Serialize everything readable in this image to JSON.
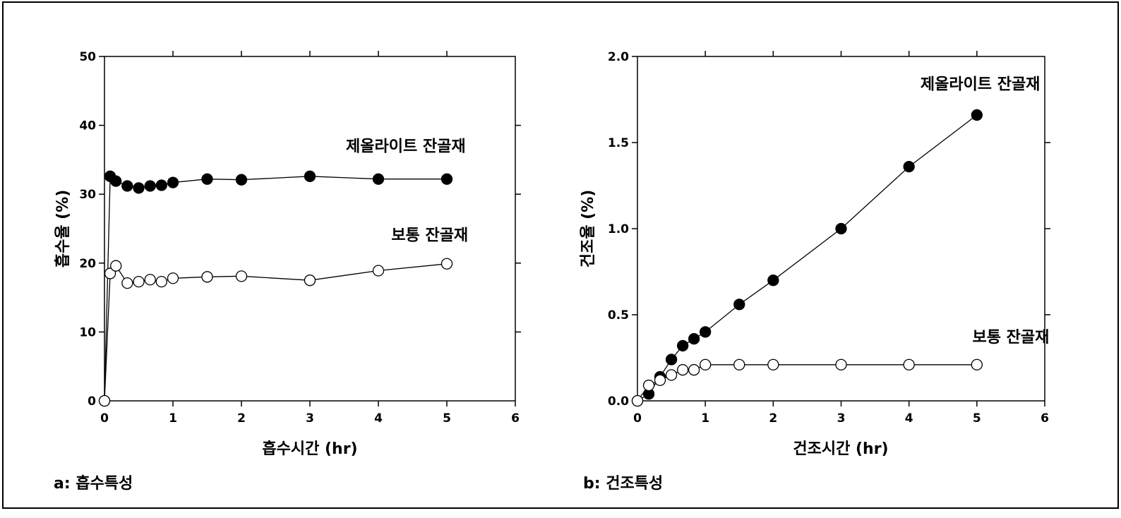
{
  "chart_data": [
    {
      "type": "line",
      "caption": "a: 흡수특성",
      "xlabel": "흡수시간 (hr)",
      "ylabel": "흡수율 (%)",
      "xlim": [
        0,
        6
      ],
      "ylim": [
        0,
        50
      ],
      "xticks": [
        0,
        1,
        2,
        3,
        4,
        5,
        6
      ],
      "yticks": [
        0,
        10,
        20,
        30,
        40,
        50
      ],
      "grid": false,
      "series": [
        {
          "name": "제올라이트 잔골재",
          "marker": "filled-circle",
          "label_at": [
            4.4,
            36.2
          ],
          "x": [
            0,
            0.083,
            0.167,
            0.333,
            0.5,
            0.667,
            0.833,
            1,
            1.5,
            2,
            3,
            4,
            5
          ],
          "y": [
            0,
            32.6,
            31.9,
            31.2,
            30.9,
            31.2,
            31.3,
            31.7,
            32.2,
            32.1,
            32.6,
            32.2,
            32.2
          ]
        },
        {
          "name": "보통 잔골재",
          "marker": "open-circle",
          "label_at": [
            4.75,
            23.3
          ],
          "x": [
            0,
            0.083,
            0.167,
            0.333,
            0.5,
            0.667,
            0.833,
            1,
            1.5,
            2,
            3,
            4,
            5
          ],
          "y": [
            0,
            18.5,
            19.6,
            17.1,
            17.3,
            17.6,
            17.3,
            17.8,
            18.0,
            18.1,
            17.5,
            18.9,
            19.9
          ]
        }
      ]
    },
    {
      "type": "line",
      "caption": "b: 건조특성",
      "xlabel": "건조시간 (hr)",
      "ylabel": "건조율 (%)",
      "xlim": [
        0,
        6
      ],
      "ylim": [
        0,
        2.0
      ],
      "xticks": [
        0,
        1,
        2,
        3,
        4,
        5,
        6
      ],
      "yticks": [
        0,
        0.5,
        1.0,
        1.5,
        2.0
      ],
      "ytick_labels": [
        "0.0",
        "0.5",
        "1.0",
        "1.5",
        "2.0"
      ],
      "grid": false,
      "series": [
        {
          "name": "제올라이트 잔골재",
          "marker": "filled-circle",
          "label_at": [
            5.05,
            1.81
          ],
          "x": [
            0,
            0.167,
            0.333,
            0.5,
            0.667,
            0.833,
            1,
            1.5,
            2,
            3,
            4,
            5
          ],
          "y": [
            0,
            0.04,
            0.14,
            0.24,
            0.32,
            0.36,
            0.4,
            0.56,
            0.7,
            1.0,
            1.36,
            1.66
          ]
        },
        {
          "name": "보통 잔골재",
          "marker": "open-circle",
          "label_at": [
            5.5,
            0.34
          ],
          "x": [
            0,
            0.167,
            0.333,
            0.5,
            0.667,
            0.833,
            1,
            1.5,
            2,
            3,
            4,
            5
          ],
          "y": [
            0,
            0.09,
            0.12,
            0.15,
            0.18,
            0.18,
            0.21,
            0.21,
            0.21,
            0.21,
            0.21,
            0.21
          ]
        }
      ]
    }
  ]
}
